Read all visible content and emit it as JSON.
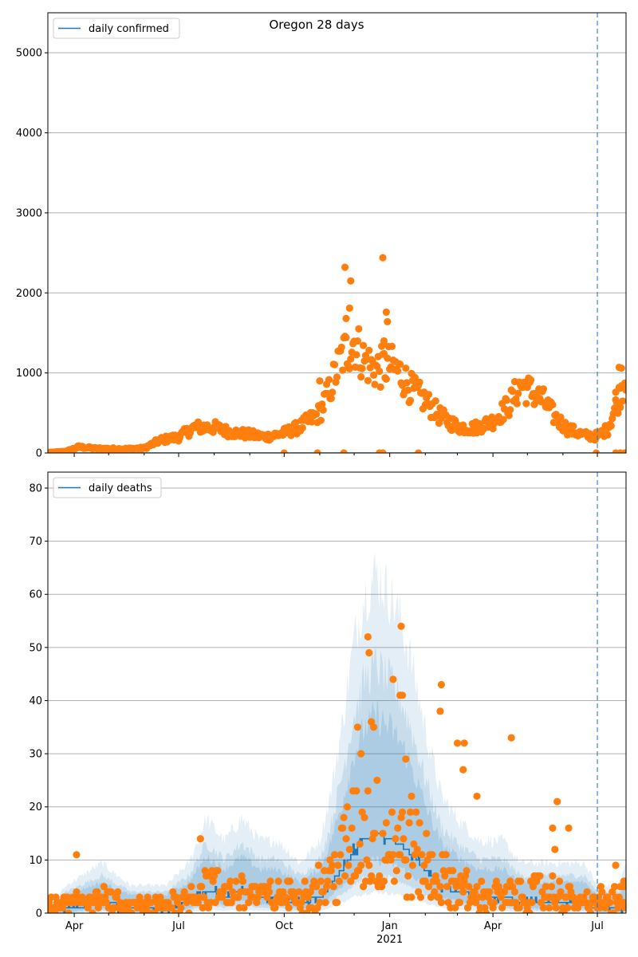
{
  "title": "Oregon 28 days",
  "colors": {
    "line": "#1f77b4",
    "points": "#ff7f0e",
    "band": "#1f77b4",
    "grid": "#b0b0b0",
    "marker": "#1f77b4"
  },
  "chart_data": [
    {
      "type": "scatter",
      "legend": {
        "label": "daily confirmed",
        "placement": "top-left"
      },
      "ylim": [
        0,
        5500
      ],
      "yticks": [
        0,
        1000,
        2000,
        3000,
        4000,
        5000
      ],
      "xlim": [
        "2020-03-09",
        "2021-07-26"
      ],
      "grid": "y",
      "vertical_line": "2021-07-01",
      "series": [
        {
          "name": "daily confirmed",
          "kind": "line",
          "points": [
            [
              "2020-03-09",
              0
            ],
            [
              "2021-07-26",
              0
            ]
          ]
        },
        {
          "kind": "scatter",
          "anchors": [
            [
              "2020-03-09",
              5
            ],
            [
              "2020-03-25",
              20
            ],
            [
              "2020-04-05",
              75
            ],
            [
              "2020-04-20",
              55
            ],
            [
              "2020-05-15",
              50
            ],
            [
              "2020-06-01",
              60
            ],
            [
              "2020-06-15",
              160
            ],
            [
              "2020-07-01",
              200
            ],
            [
              "2020-07-15",
              320
            ],
            [
              "2020-08-01",
              320
            ],
            [
              "2020-08-15",
              260
            ],
            [
              "2020-09-01",
              230
            ],
            [
              "2020-09-15",
              200
            ],
            [
              "2020-10-01",
              250
            ],
            [
              "2020-10-15",
              330
            ],
            [
              "2020-11-01",
              500
            ],
            [
              "2020-11-10",
              800
            ],
            [
              "2020-11-20",
              1200
            ],
            [
              "2020-12-01",
              1400
            ],
            [
              "2020-12-10",
              1150
            ],
            [
              "2020-12-20",
              1050
            ],
            [
              "2021-01-01",
              1100
            ],
            [
              "2021-01-10",
              1000
            ],
            [
              "2021-01-20",
              800
            ],
            [
              "2021-02-01",
              650
            ],
            [
              "2021-02-15",
              450
            ],
            [
              "2021-03-01",
              330
            ],
            [
              "2021-03-15",
              310
            ],
            [
              "2021-04-01",
              400
            ],
            [
              "2021-04-15",
              600
            ],
            [
              "2021-04-25",
              850
            ],
            [
              "2021-05-05",
              760
            ],
            [
              "2021-05-15",
              650
            ],
            [
              "2021-05-25",
              450
            ],
            [
              "2021-06-05",
              300
            ],
            [
              "2021-06-20",
              220
            ],
            [
              "2021-07-01",
              210
            ],
            [
              "2021-07-10",
              300
            ],
            [
              "2021-07-20",
              700
            ],
            [
              "2021-07-26",
              1000
            ]
          ],
          "outliers": [
            [
              "2020-11-23",
              2320
            ],
            [
              "2020-11-28",
              2150
            ],
            [
              "2020-12-26",
              2440
            ],
            [
              "2020-11-24",
              1680
            ],
            [
              "2020-11-27",
              1810
            ],
            [
              "2020-12-29",
              1760
            ],
            [
              "2020-12-27",
              1400
            ],
            [
              "2020-12-30",
              1640
            ],
            [
              "2020-11-01",
              900
            ],
            [
              "2020-10-30",
              0
            ],
            [
              "2020-11-22",
              0
            ],
            [
              "2020-12-23",
              0
            ],
            [
              "2020-12-26",
              0
            ],
            [
              "2021-01-26",
              0
            ],
            [
              "2021-06-30",
              0
            ],
            [
              "2021-07-17",
              0
            ],
            [
              "2021-07-21",
              0
            ],
            [
              "2021-07-25",
              0
            ],
            [
              "2020-10-01",
              0
            ],
            [
              "2021-07-20",
              1070
            ],
            [
              "2021-07-22",
              1060
            ],
            [
              "2021-07-21",
              810
            ],
            [
              "2021-07-17",
              760
            ]
          ]
        }
      ]
    },
    {
      "type": "scatter",
      "legend": {
        "label": "daily deaths",
        "placement": "top-left"
      },
      "ylim": [
        0,
        83
      ],
      "yticks": [
        0,
        10,
        20,
        30,
        40,
        50,
        60,
        70,
        80
      ],
      "xlim": [
        "2020-03-09",
        "2021-07-26"
      ],
      "xticks": [
        "Apr",
        "Jul",
        "Oct",
        "Jan",
        "Apr",
        "Jul"
      ],
      "xticks_dates": [
        "2020-04-01",
        "2020-07-01",
        "2020-10-01",
        "2021-01-01",
        "2021-04-01",
        "2021-07-01"
      ],
      "xsublabel": "2021",
      "grid": "y",
      "vertical_line": "2021-07-01",
      "series": [
        {
          "name": "daily deaths",
          "kind": "step",
          "points": [
            [
              "2020-03-09",
              0
            ],
            [
              "2020-03-25",
              1
            ],
            [
              "2020-04-25",
              2
            ],
            [
              "2020-05-20",
              1
            ],
            [
              "2020-06-20",
              1
            ],
            [
              "2020-07-10",
              2
            ],
            [
              "2020-07-25",
              4
            ],
            [
              "2020-08-10",
              3
            ],
            [
              "2020-08-25",
              4
            ],
            [
              "2020-09-10",
              3
            ],
            [
              "2020-09-25",
              3
            ],
            [
              "2020-10-15",
              2
            ],
            [
              "2020-11-01",
              3
            ],
            [
              "2020-11-10",
              5
            ],
            [
              "2020-11-20",
              8
            ],
            [
              "2020-12-01",
              12
            ],
            [
              "2020-12-10",
              14
            ],
            [
              "2020-12-20",
              15
            ],
            [
              "2021-01-01",
              14
            ],
            [
              "2021-01-10",
              13
            ],
            [
              "2021-01-20",
              11
            ],
            [
              "2021-02-01",
              8
            ],
            [
              "2021-02-15",
              5
            ],
            [
              "2021-03-01",
              4
            ],
            [
              "2021-03-20",
              3
            ],
            [
              "2021-04-10",
              3
            ],
            [
              "2021-04-25",
              2
            ],
            [
              "2021-05-15",
              2
            ],
            [
              "2021-06-01",
              2
            ],
            [
              "2021-06-20",
              2
            ],
            [
              "2021-07-01",
              1
            ],
            [
              "2021-07-20",
              1
            ],
            [
              "2021-07-26",
              2
            ]
          ]
        },
        {
          "kind": "scatter",
          "anchors": [
            [
              "2020-03-09",
              1
            ],
            [
              "2020-04-01",
              2
            ],
            [
              "2020-04-20",
              3
            ],
            [
              "2020-05-15",
              1
            ],
            [
              "2020-06-15",
              1
            ],
            [
              "2020-07-10",
              3
            ],
            [
              "2020-07-25",
              5
            ],
            [
              "2020-08-10",
              4
            ],
            [
              "2020-09-01",
              4
            ],
            [
              "2020-09-20",
              3
            ],
            [
              "2020-10-10",
              3
            ],
            [
              "2020-10-25",
              4
            ],
            [
              "2020-11-10",
              6
            ],
            [
              "2020-11-20",
              10
            ],
            [
              "2020-12-01",
              14
            ],
            [
              "2020-12-10",
              15
            ],
            [
              "2020-12-25",
              14
            ],
            [
              "2021-01-05",
              13
            ],
            [
              "2021-01-20",
              11
            ],
            [
              "2021-02-01",
              9
            ],
            [
              "2021-02-15",
              6
            ],
            [
              "2021-03-01",
              5
            ],
            [
              "2021-03-20",
              3
            ],
            [
              "2021-04-10",
              3
            ],
            [
              "2021-04-25",
              3
            ],
            [
              "2021-05-15",
              4
            ],
            [
              "2021-06-01",
              3
            ],
            [
              "2021-06-20",
              2
            ],
            [
              "2021-07-10",
              2
            ],
            [
              "2021-07-26",
              3
            ]
          ],
          "outliers": [
            [
              "2020-04-03",
              11
            ],
            [
              "2020-07-20",
              14
            ],
            [
              "2020-12-13",
              52
            ],
            [
              "2020-12-14",
              49
            ],
            [
              "2021-01-11",
              54
            ],
            [
              "2021-01-04",
              44
            ],
            [
              "2021-01-10",
              41
            ],
            [
              "2021-01-12",
              41
            ],
            [
              "2021-02-15",
              43
            ],
            [
              "2021-02-14",
              38
            ],
            [
              "2021-03-01",
              32
            ],
            [
              "2021-03-07",
              32
            ],
            [
              "2021-03-06",
              27
            ],
            [
              "2021-03-18",
              22
            ],
            [
              "2021-04-17",
              33
            ],
            [
              "2021-05-27",
              21
            ],
            [
              "2021-06-06",
              16
            ],
            [
              "2020-12-04",
              35
            ],
            [
              "2020-12-07",
              30
            ],
            [
              "2020-12-16",
              36
            ],
            [
              "2020-12-18",
              35
            ],
            [
              "2021-01-15",
              29
            ],
            [
              "2021-01-20",
              22
            ],
            [
              "2021-05-23",
              16
            ],
            [
              "2021-05-25",
              12
            ],
            [
              "2021-07-17",
              9
            ],
            [
              "2021-07-24",
              6
            ],
            [
              "2021-07-25",
              6
            ]
          ]
        }
      ]
    }
  ]
}
